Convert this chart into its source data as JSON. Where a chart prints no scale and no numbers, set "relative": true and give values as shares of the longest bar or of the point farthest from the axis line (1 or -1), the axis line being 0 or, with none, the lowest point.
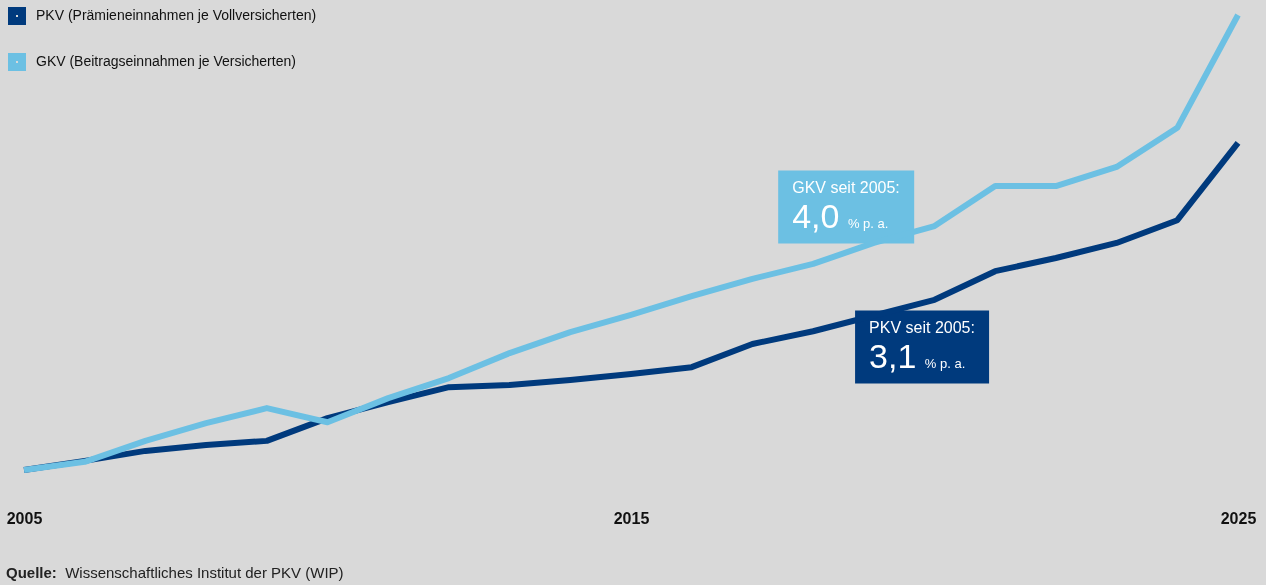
{
  "chart_data": {
    "type": "line",
    "relative": true,
    "legend": "top left",
    "line_style": "solid",
    "x": [
      2005,
      2006,
      2007,
      2008,
      2009,
      2010,
      2011,
      2012,
      2013,
      2014,
      2015,
      2016,
      2017,
      2018,
      2019,
      2020,
      2021,
      2022,
      2023,
      2024,
      2025
    ],
    "xlim": [
      2005,
      2025
    ],
    "xticks": [
      2005,
      2015,
      2025
    ],
    "series": [
      {
        "name": "PKV (Prämieneinnahmen je Vollversicherten)",
        "color": "#003a7d",
        "values": [
          0,
          0.02,
          0.042,
          0.055,
          0.064,
          0.114,
          0.149,
          0.182,
          0.187,
          0.198,
          0.211,
          0.226,
          0.277,
          0.305,
          null,
          0.374,
          0.437,
          0.466,
          0.499,
          0.549,
          0.719
        ]
      },
      {
        "name": "GKV (Beitragseinnahmen je Versicherten)",
        "color": "#6cc0e3",
        "values": [
          0,
          0.018,
          0.064,
          0.103,
          0.136,
          0.105,
          0.158,
          0.202,
          0.257,
          0.303,
          0.341,
          0.382,
          0.42,
          0.453,
          0.499,
          0.536,
          0.624,
          0.624,
          0.666,
          0.752,
          1
        ]
      }
    ],
    "annotations": [
      "GKV seit 2005:\n4,0 % p. a.",
      "PKV seit 2005:\n3,1 % p. a.",
      "Quelle: Wissenschaftliches Institut der PKV (WIP)"
    ]
  }
}
